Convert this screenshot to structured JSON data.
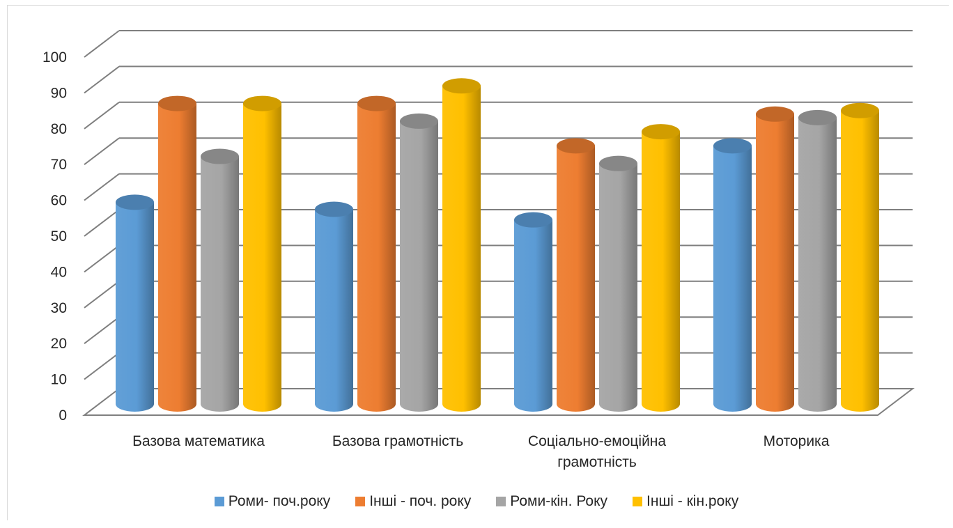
{
  "chart_data": {
    "type": "bar",
    "style": "3d-cylinder",
    "categories": [
      [
        "Базова математика"
      ],
      [
        "Базова грамотність"
      ],
      [
        "Соціально-емоційна",
        "грамотність"
      ],
      [
        "Моторика"
      ]
    ],
    "series": [
      {
        "name": "Роми- поч.року",
        "color": "#5B9BD5",
        "values": [
          58,
          56,
          53,
          74
        ]
      },
      {
        "name": "Інші - поч. року",
        "color": "#ED7D31",
        "values": [
          86,
          86,
          74,
          83
        ]
      },
      {
        "name": "Роми-кін. Року",
        "color": "#A5A5A5",
        "values": [
          71,
          81,
          69,
          82
        ]
      },
      {
        "name": "Інші - кін.року",
        "color": "#FFC000",
        "values": [
          86,
          91,
          78,
          84
        ]
      }
    ],
    "ylim": [
      0,
      100
    ],
    "yticks": [
      "0",
      "10",
      "20",
      "30",
      "40",
      "50",
      "60",
      "70",
      "80",
      "90",
      "100"
    ],
    "grid": true,
    "legend": "bottom"
  }
}
